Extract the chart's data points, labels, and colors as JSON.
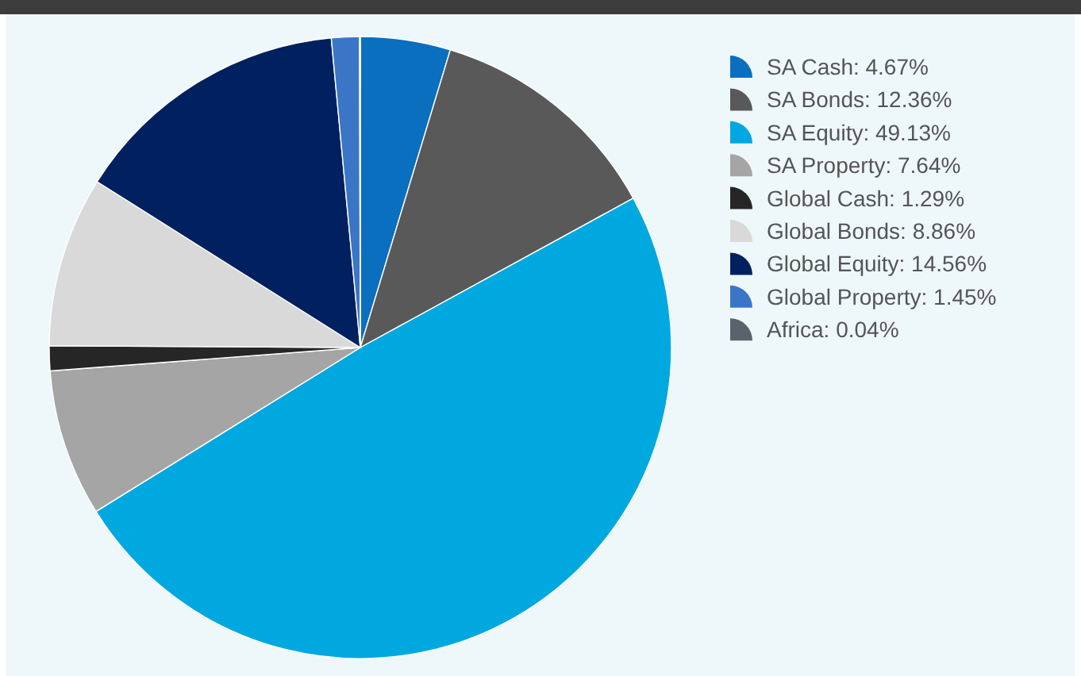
{
  "chart_data": {
    "type": "pie",
    "categories": [
      "SA Cash",
      "SA Bonds",
      "SA Equity",
      "SA Property",
      "Global Cash",
      "Global Bonds",
      "Global Equity",
      "Global Property",
      "Africa"
    ],
    "values": [
      4.67,
      12.36,
      49.13,
      7.64,
      1.29,
      8.86,
      14.56,
      1.45,
      0.04
    ],
    "value_labels": [
      "4.67%",
      "12.36%",
      "49.13%",
      "7.64%",
      "1.29%",
      "8.86%",
      "14.56%",
      "1.45%",
      "0.04%"
    ],
    "colors": [
      "#0b6fbf",
      "#595959",
      "#00a8e0",
      "#a5a5a5",
      "#262626",
      "#d9d9d9",
      "#00205f",
      "#3b76c6",
      "#59636b"
    ],
    "legend": "right"
  }
}
